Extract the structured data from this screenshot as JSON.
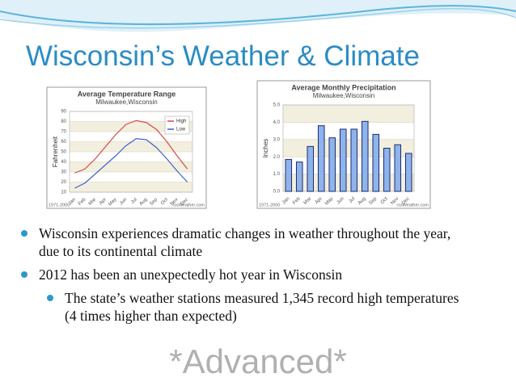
{
  "title": "Wisconsin’s Weather & Climate",
  "bullets": [
    "Wisconsin experiences dramatic changes in weather throughout the year, due to its continental climate",
    "2012 has been an unexpectedly hot year in Wisconsin",
    "The state’s weather stations measured 1,345 record high temperatures (4 times higher than expected)"
  ],
  "footer": "*Advanced*",
  "chart_data": [
    {
      "type": "line",
      "title": "Average Temperature Range",
      "subtitle": "Milwaukee,Wisconsin",
      "y_label": "Fahrenheit",
      "period": "1971-2000",
      "source": "rssWeather.com",
      "categories": [
        "Jan",
        "Feb",
        "Mar",
        "Apr",
        "May",
        "Jun",
        "Jul",
        "Aug",
        "Sep",
        "Oct",
        "Nov",
        "Dec"
      ],
      "series": [
        {
          "name": "High",
          "color": "#d9474a",
          "values": [
            29,
            33,
            43,
            55,
            67,
            77,
            81,
            79,
            72,
            60,
            46,
            33
          ]
        },
        {
          "name": "Low",
          "color": "#3f5fd0",
          "values": [
            14,
            19,
            28,
            37,
            46,
            56,
            63,
            62,
            54,
            43,
            31,
            20
          ]
        }
      ],
      "ylim": [
        10,
        90
      ],
      "yticks": [
        10,
        20,
        30,
        40,
        50,
        60,
        70,
        80,
        90
      ],
      "grid": true,
      "legend": "top-right"
    },
    {
      "type": "bar",
      "title": "Average Monthly Precipitation",
      "subtitle": "Milwaukee,Wisconsin",
      "y_label": "Inches",
      "period": "1971-2000",
      "source": "rssWeather.com",
      "categories": [
        "Jan",
        "Feb",
        "Mar",
        "Apr",
        "May",
        "Jun",
        "Jul",
        "Aug",
        "Sep",
        "Oct",
        "Nov",
        "Dec"
      ],
      "values": [
        1.85,
        1.7,
        2.6,
        3.8,
        3.1,
        3.6,
        3.6,
        4.05,
        3.3,
        2.5,
        2.7,
        2.2
      ],
      "color": "#8fb3ec",
      "ylim": [
        0,
        5
      ],
      "yticks": [
        {
          "value": 0,
          "label": "0.0"
        },
        {
          "value": 1,
          "label": "1.0"
        },
        {
          "value": 2,
          "label": "2.0"
        },
        {
          "value": 3,
          "label": "3.0"
        },
        {
          "value": 4,
          "label": "4.0"
        },
        {
          "value": 5,
          "label": "5.0"
        }
      ],
      "grid": true
    }
  ]
}
